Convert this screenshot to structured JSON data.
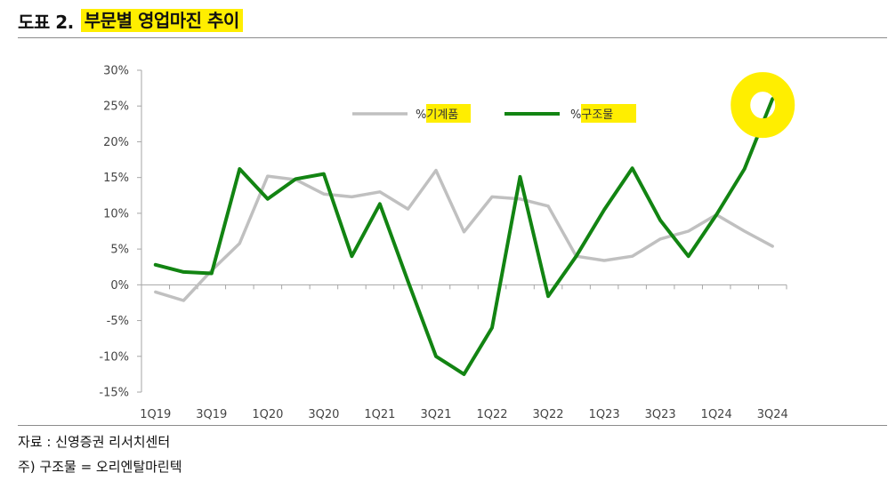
{
  "header": {
    "figure_label": "도표 2.",
    "title": "부문별 영업마진 추이"
  },
  "chart_data": {
    "type": "line",
    "categories": [
      "1Q19",
      "2Q19",
      "3Q19",
      "4Q19",
      "1Q20",
      "2Q20",
      "3Q20",
      "4Q20",
      "1Q21",
      "2Q21",
      "3Q21",
      "4Q21",
      "1Q22",
      "2Q22",
      "3Q22",
      "4Q22",
      "1Q23",
      "2Q23",
      "3Q23",
      "4Q23",
      "1Q24",
      "2Q24",
      "3Q24"
    ],
    "x_tick_labels": [
      "1Q19",
      "3Q19",
      "1Q20",
      "3Q20",
      "1Q21",
      "3Q21",
      "1Q22",
      "3Q22",
      "1Q23",
      "3Q23",
      "1Q24",
      "3Q24"
    ],
    "ylim": [
      -15,
      30
    ],
    "y_ticks": [
      -15,
      -10,
      -5,
      0,
      5,
      10,
      15,
      20,
      25,
      30
    ],
    "y_tick_labels": [
      "-15%",
      "-10%",
      "-5%",
      "0%",
      "5%",
      "10%",
      "15%",
      "20%",
      "25%",
      "30%"
    ],
    "legend_position": "top-right",
    "series": [
      {
        "name": "%기계품",
        "color": "#c0c0c0",
        "values": [
          -1.0,
          -2.2,
          2.0,
          5.8,
          15.2,
          14.7,
          12.7,
          12.3,
          13.0,
          10.6,
          16.0,
          7.4,
          12.3,
          12.0,
          11.0,
          4.0,
          3.4,
          4.0,
          6.4,
          7.5,
          9.8,
          7.5,
          5.4
        ]
      },
      {
        "name": "%구조물",
        "color": "#128412",
        "values": [
          2.8,
          1.8,
          1.6,
          16.2,
          12.0,
          14.8,
          15.5,
          4.0,
          11.3,
          0.5,
          -10.0,
          -12.5,
          -6.0,
          15.1,
          -1.6,
          4.0,
          10.5,
          16.3,
          9.0,
          4.0,
          9.8,
          16.2,
          26.0
        ]
      }
    ]
  },
  "footnotes": {
    "source": "자료 : 신영증권 리서치센터",
    "note": "주) 구조물 = 오리엔탈마린텍"
  }
}
